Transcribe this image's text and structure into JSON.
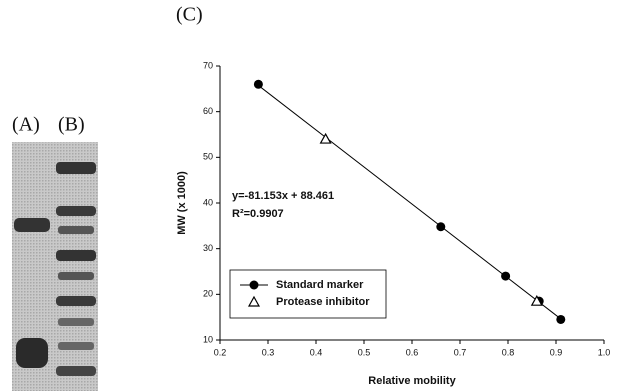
{
  "panel_labels": [
    "(A)",
    "(B)",
    "(C)"
  ],
  "chart_data": {
    "type": "scatter",
    "x_label": "Relative mobility",
    "y_label": "MW (x 1000)",
    "annotations": [
      "y=-81.153x + 88.461",
      "R²=0.9907"
    ],
    "xlim": [
      0.2,
      1.0
    ],
    "xticks": [
      0.2,
      0.3,
      0.4,
      0.5,
      0.6,
      0.7,
      0.8,
      0.9,
      {
        "value": 1.0,
        "label": "1.0"
      }
    ],
    "ylim": [
      10,
      70
    ],
    "yticks": [
      10,
      20,
      30,
      40,
      50,
      60,
      70
    ],
    "fit": {
      "x": [
        0.28,
        0.91
      ],
      "values": [
        65.74,
        14.61
      ]
    },
    "series": [
      {
        "name": "Standard marker",
        "color": "#000000",
        "marker": "circle",
        "x": [
          0.28,
          0.66,
          0.795,
          0.865,
          0.91
        ],
        "values": [
          66,
          34.8,
          24,
          18.5,
          14.5
        ]
      },
      {
        "name": "Protease inhibitor",
        "color": "#000000",
        "marker": "triangle",
        "x": [
          0.42,
          0.86
        ],
        "values": [
          54,
          18.5
        ]
      }
    ]
  }
}
